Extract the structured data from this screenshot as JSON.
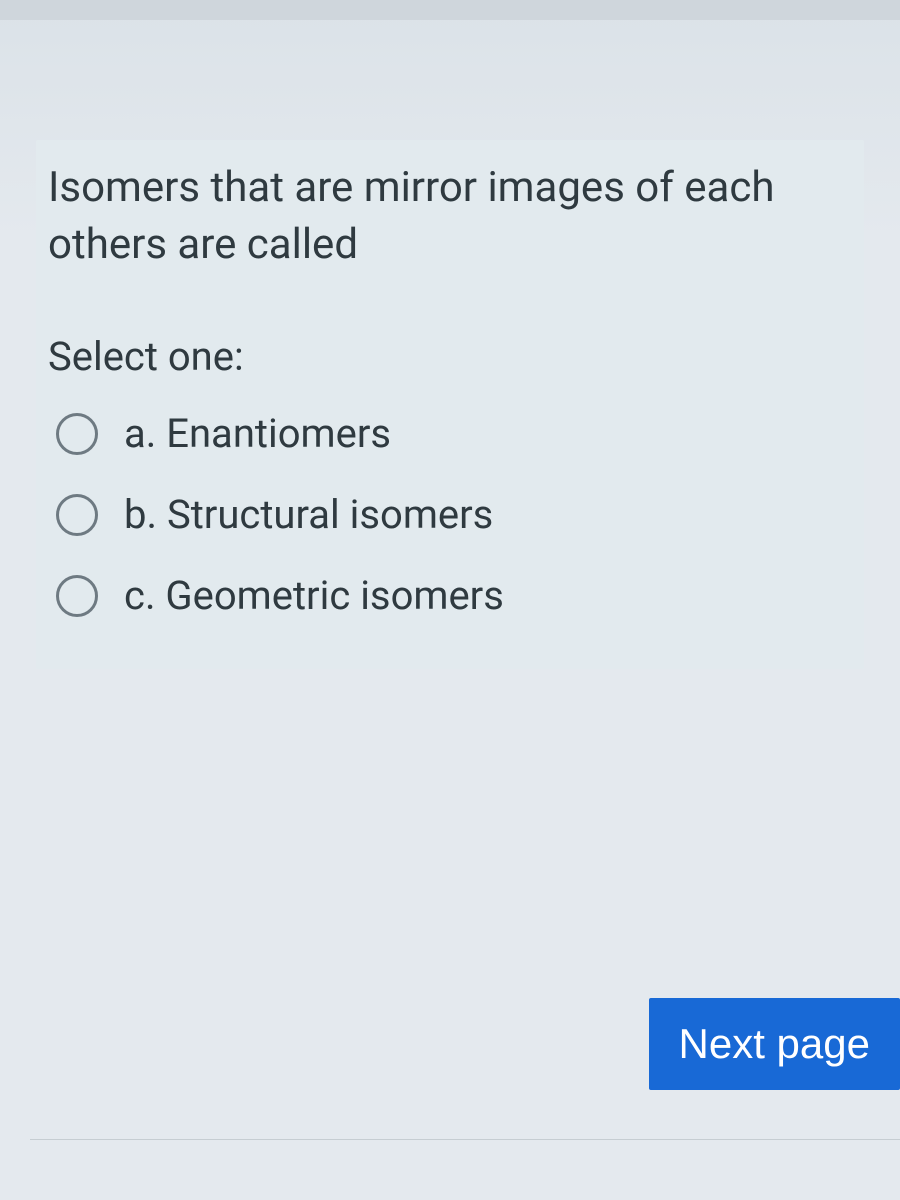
{
  "question": {
    "text": "Isomers that are mirror images of each others are called",
    "select_label": "Select one:",
    "options": [
      {
        "letter": "a.",
        "label": "Enantiomers"
      },
      {
        "letter": "b.",
        "label": "Structural isomers"
      },
      {
        "letter": "c.",
        "label": "Geometric isomers"
      }
    ]
  },
  "nav": {
    "next_label": "Next page"
  },
  "colors": {
    "page_bg": "#e4e9ee",
    "card_bg": "#e2eaee",
    "text": "#2f3a40",
    "radio_border": "#6e7a82",
    "button_bg": "#1869d6",
    "button_text": "#ffffff",
    "divider": "#c6cdd2"
  },
  "typography": {
    "question_fontsize": 42,
    "option_fontsize": 40,
    "button_fontsize": 42
  }
}
